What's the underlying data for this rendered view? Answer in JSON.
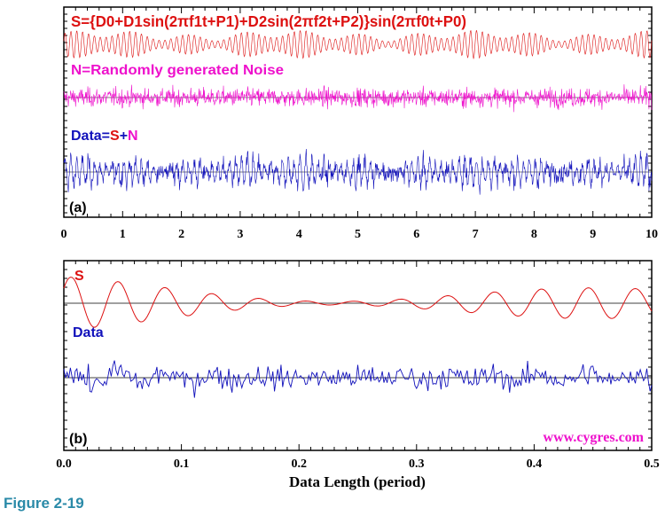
{
  "figure_caption": "Figure 2-19",
  "website": "www.cygres.com",
  "colors": {
    "signal": "#dd1111",
    "noise": "#ee11cc",
    "data": "#1111bb",
    "caption": "#2a8aa8",
    "website": "#ee11cc"
  },
  "chart_data": [
    {
      "type": "line",
      "panel_label": "(a)",
      "xlabel": "",
      "xlim": [
        0,
        10
      ],
      "x_ticks": [
        "0",
        "1",
        "2",
        "3",
        "4",
        "5",
        "6",
        "7",
        "8",
        "9",
        "10"
      ],
      "grid": false,
      "traces": [
        {
          "name": "S",
          "label_text": "S={D0+D1sin(2πf1t+P1)+D2sin(2πf2t+P2)}sin(2πf0t+P0)",
          "color": "#dd1111",
          "carrier_cycles": 100,
          "envelope_offset": 0.6,
          "envelope_components": [
            {
              "amp": 0.25,
              "cycles": 10.3
            },
            {
              "amp": 0.15,
              "cycles": 3.1
            }
          ]
        },
        {
          "name": "N",
          "label_text": "N=Randomly generated Noise",
          "color": "#ee11cc",
          "distribution": "random",
          "amplitude": 1.0
        },
        {
          "name": "Data",
          "label_parts": [
            "Data=",
            "S",
            "+",
            "N"
          ],
          "color": "#1111bb",
          "definition": "S+N"
        }
      ]
    },
    {
      "type": "line",
      "panel_label": "(b)",
      "xlabel": "Data Length (period)",
      "xlim": [
        0,
        0.5
      ],
      "x_ticks": [
        "0.0",
        "0.1",
        "0.2",
        "0.3",
        "0.4",
        "0.5"
      ],
      "grid": false,
      "traces": [
        {
          "name": "S",
          "label_text": "S",
          "color": "#dd1111",
          "sampled_from": "panel (a) S, t in [0, 0.5]"
        },
        {
          "name": "Data",
          "label_text": "Data",
          "color": "#1111bb",
          "sampled_from": "panel (a) S+N, t in [0, 0.5]"
        }
      ]
    }
  ]
}
